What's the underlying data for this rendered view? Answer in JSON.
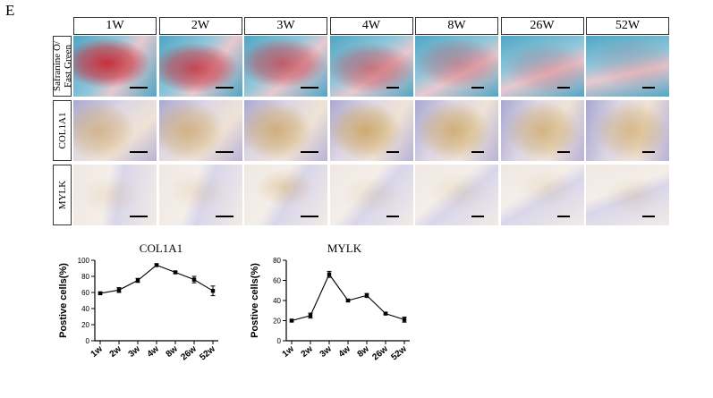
{
  "panel_letter": "E",
  "columns": [
    "1W",
    "2W",
    "3W",
    "4W",
    "8W",
    "26W",
    "52W"
  ],
  "rows": [
    {
      "id": "safranin",
      "label_lines": [
        "Safranine O/",
        "Fast Green"
      ]
    },
    {
      "id": "col1a1",
      "label_lines": [
        "COL1A1"
      ]
    },
    {
      "id": "mylk",
      "label_lines": [
        "MYLK"
      ]
    }
  ],
  "colors": {
    "safranin_red": "#c9303c",
    "fast_green": "#4fa6c4",
    "ihc_brown": "#c69a4a",
    "hematoxylin": "#a9a7cf",
    "background_tissue": "#efe7e2"
  },
  "chart_data": [
    {
      "type": "line",
      "title": "COL1A1",
      "ylabel": "Postive cells(%)",
      "categories": [
        "1w",
        "2w",
        "3w",
        "4w",
        "8w",
        "26w",
        "52w"
      ],
      "values": [
        59,
        63,
        75,
        94,
        85,
        76,
        62
      ],
      "errors": [
        1.5,
        3,
        2.5,
        1.5,
        1.5,
        4,
        6
      ],
      "ylim": [
        0,
        100
      ],
      "yticks": [
        0,
        20,
        40,
        60,
        80,
        100
      ]
    },
    {
      "type": "line",
      "title": "MYLK",
      "ylabel": "Postive cells(%)",
      "categories": [
        "1w",
        "2w",
        "3w",
        "4w",
        "8w",
        "26w",
        "52w"
      ],
      "values": [
        20,
        25,
        66,
        40,
        45,
        27,
        21
      ],
      "errors": [
        1.2,
        2.5,
        3,
        1.2,
        2,
        1,
        2.5
      ],
      "ylim": [
        0,
        80
      ],
      "yticks": [
        0,
        20,
        40,
        60,
        80
      ]
    }
  ]
}
